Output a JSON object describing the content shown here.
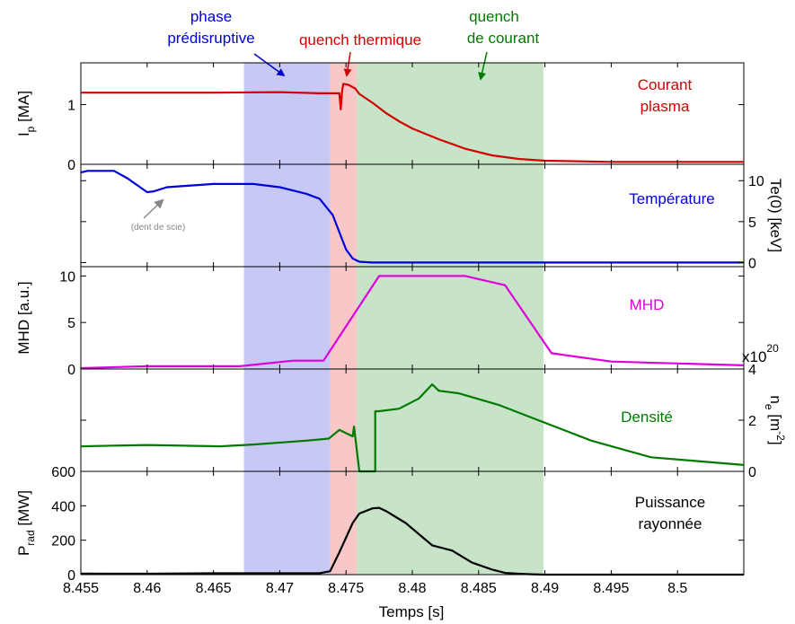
{
  "figure": {
    "xlabel": "Temps [s]"
  },
  "annotations": {
    "phase_predisruptive": [
      "phase",
      "prédisruptive"
    ],
    "quench_thermique": "quench thermique",
    "quench_courant": [
      "quench",
      "de courant"
    ],
    "dent_de_scie": "(dent de scie)"
  },
  "colors": {
    "current": "#d40000",
    "temperature": "#0000dd",
    "mhd": "#dd00dd",
    "density": "#007a00",
    "radiation": "#000000",
    "phase_band": "#c8c8f5",
    "thermal_band": "#f8c8c8",
    "current_band": "#c8e4c8"
  },
  "chart_data": [
    {
      "type": "line",
      "xlim": [
        8.455,
        8.505
      ],
      "x_ticks": [
        "8.455",
        "8.46",
        "8.465",
        "8.47",
        "8.475",
        "8.48",
        "8.485",
        "8.49",
        "8.495",
        "8.5"
      ],
      "shaded_regions": [
        {
          "name": "phase prédisruptive",
          "x": [
            8.4673,
            8.4738
          ]
        },
        {
          "name": "quench thermique",
          "x": [
            8.4738,
            8.4758
          ]
        },
        {
          "name": "quench de courant",
          "x": [
            8.4758,
            8.4899
          ]
        }
      ]
    },
    {
      "type": "line",
      "ylabel": "I_p [MA]",
      "yaxis_side": "left",
      "ylim": [
        0,
        1.7
      ],
      "y_ticks": [
        "0",
        "1"
      ],
      "series": [
        {
          "name": "Courant plasma",
          "x": [
            8.455,
            8.46,
            8.465,
            8.47,
            8.473,
            8.4745,
            8.4746,
            8.4747,
            8.4748,
            8.4752,
            8.4757,
            8.476,
            8.477,
            8.478,
            8.479,
            8.48,
            8.482,
            8.484,
            8.486,
            8.488,
            8.49,
            8.495,
            8.505
          ],
          "y": [
            1.2,
            1.2,
            1.2,
            1.21,
            1.19,
            1.19,
            0.92,
            1.22,
            1.35,
            1.33,
            1.27,
            1.18,
            1.03,
            0.86,
            0.72,
            0.6,
            0.42,
            0.26,
            0.15,
            0.09,
            0.06,
            0.04,
            0.04
          ]
        }
      ]
    },
    {
      "type": "line",
      "ylabel": "Te(0) [keV]",
      "yaxis_side": "right",
      "ylim": [
        -0.5,
        12
      ],
      "y_ticks": [
        "0",
        "5",
        "10"
      ],
      "series": [
        {
          "name": "Température",
          "x": [
            8.455,
            8.4555,
            8.4575,
            8.4585,
            8.46,
            8.4605,
            8.4615,
            8.465,
            8.468,
            8.47,
            8.472,
            8.473,
            8.474,
            8.475,
            8.4755,
            8.476,
            8.477,
            8.485,
            8.495,
            8.505
          ],
          "y": [
            11,
            11.2,
            11.2,
            10.3,
            8.6,
            8.7,
            9.2,
            9.6,
            9.6,
            9.2,
            8.4,
            7.8,
            5.8,
            1.6,
            0.5,
            0.1,
            0.0,
            0.0,
            0.0,
            0.0
          ]
        }
      ]
    },
    {
      "type": "line",
      "ylabel": "MHD [a.u.]",
      "yaxis_side": "left",
      "ylim": [
        0,
        11
      ],
      "y_ticks": [
        "0",
        "5",
        "10"
      ],
      "series": [
        {
          "name": "MHD",
          "x": [
            8.455,
            8.46,
            8.467,
            8.471,
            8.4733,
            8.4775,
            8.484,
            8.487,
            8.4905,
            8.495,
            8.505
          ],
          "y": [
            0.1,
            0.3,
            0.3,
            0.9,
            0.9,
            10,
            10,
            9.0,
            1.7,
            0.8,
            0.4
          ]
        }
      ]
    },
    {
      "type": "line",
      "ylabel": "n_e [m^-2]",
      "ylabel_multiplier": "x10^20",
      "yaxis_side": "right",
      "ylim": [
        0,
        4
      ],
      "y_ticks": [
        "0",
        "2",
        "4"
      ],
      "series": [
        {
          "name": "Densité",
          "x": [
            8.455,
            8.46,
            8.4655,
            8.468,
            8.472,
            8.4737,
            8.4745,
            8.4755,
            8.4756,
            8.476,
            8.4765,
            8.477,
            8.4772,
            8.477201,
            8.4775,
            8.479,
            8.4805,
            8.4815,
            8.482,
            8.4835,
            8.4865,
            8.4895,
            8.4935,
            8.498,
            8.505
          ],
          "y": [
            0.98,
            1.03,
            0.98,
            1.05,
            1.2,
            1.28,
            1.62,
            1.37,
            1.75,
            0.0,
            0.0,
            0.0,
            0.0,
            2.35,
            2.35,
            2.45,
            2.85,
            3.4,
            3.15,
            3.05,
            2.6,
            2.0,
            1.2,
            0.55,
            0.25
          ]
        }
      ]
    },
    {
      "type": "line",
      "ylabel": "P_rad [MW]",
      "yaxis_side": "left",
      "ylim": [
        0,
        600
      ],
      "y_ticks": [
        "0",
        "200",
        "400",
        "600"
      ],
      "series": [
        {
          "name": "Puissance rayonnée",
          "x": [
            8.455,
            8.46,
            8.465,
            8.47,
            8.473,
            8.4738,
            8.4745,
            8.4755,
            8.476,
            8.477,
            8.4775,
            8.478,
            8.4795,
            8.4815,
            8.483,
            8.4845,
            8.486,
            8.487,
            8.488,
            8.489,
            8.49,
            8.495,
            8.505
          ],
          "y": [
            6,
            5,
            8,
            8,
            8,
            20,
            130,
            300,
            355,
            385,
            388,
            370,
            300,
            170,
            140,
            70,
            30,
            10,
            5,
            2,
            0,
            0,
            0
          ]
        }
      ]
    }
  ]
}
